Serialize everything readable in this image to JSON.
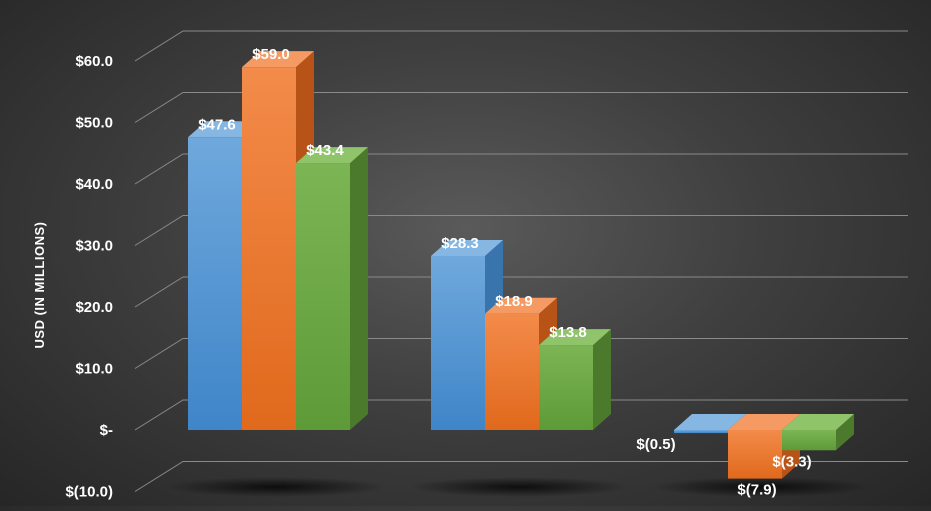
{
  "chart_data": {
    "type": "bar",
    "title": "",
    "xlabel": "",
    "ylabel": "USD (IN MILLIONS)",
    "ylim": [
      -10,
      60
    ],
    "yticks": [
      {
        "value": 60,
        "label": "$60.0"
      },
      {
        "value": 50,
        "label": "$50.0"
      },
      {
        "value": 40,
        "label": "$40.0"
      },
      {
        "value": 30,
        "label": "$30.0"
      },
      {
        "value": 20,
        "label": "$20.0"
      },
      {
        "value": 10,
        "label": "$10.0"
      },
      {
        "value": 0,
        "label": "$-"
      },
      {
        "value": -10,
        "label": "$(10.0)"
      }
    ],
    "categories": [
      "",
      "",
      ""
    ],
    "grid": true,
    "legend": "none",
    "series": [
      {
        "color": "#5b9bd5",
        "values": [
          47.6,
          28.3,
          -0.5
        ],
        "labels": [
          "$47.6",
          "$28.3",
          "$(0.5)"
        ]
      },
      {
        "color": "#ed7d31",
        "values": [
          59.0,
          18.9,
          -7.9
        ],
        "labels": [
          "$59.0",
          "$18.9",
          "$(7.9)"
        ]
      },
      {
        "color": "#70ad47",
        "values": [
          43.4,
          13.8,
          -3.3
        ],
        "labels": [
          "$43.4",
          "$13.8",
          "$(3.3)"
        ]
      }
    ]
  }
}
